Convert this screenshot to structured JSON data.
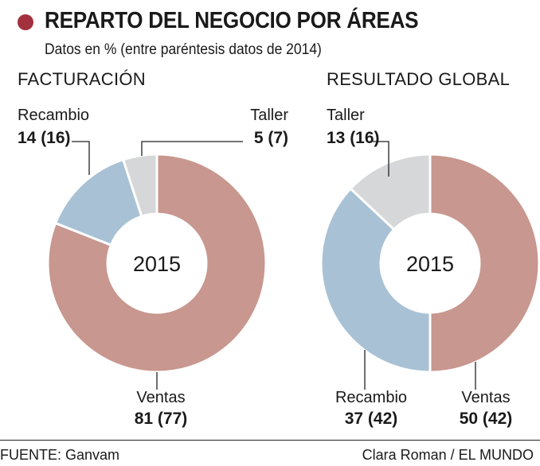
{
  "header": {
    "title": "REPARTO DEL NEGOCIO POR ÁREAS",
    "subtitle": "Datos en % (entre paréntesis datos de 2014)",
    "bullet_color": "#a3313d"
  },
  "footer": {
    "source": "FUENTE: Ganvam",
    "credit": "Clara Roman / EL MUNDO"
  },
  "colors": {
    "Ventas": "#c8978f",
    "Recambio": "#a8c1d5",
    "Taller": "#d6d7d8"
  },
  "chart_data": [
    {
      "type": "pie",
      "donut": true,
      "title": "FACTURACIÓN",
      "center_label": "2015",
      "slices": [
        {
          "name": "Ventas",
          "value": 81,
          "prev": 77,
          "label": "81 (77)"
        },
        {
          "name": "Recambio",
          "value": 14,
          "prev": 16,
          "label": "14 (16)"
        },
        {
          "name": "Taller",
          "value": 5,
          "prev": 7,
          "label": "5 (7)"
        }
      ]
    },
    {
      "type": "pie",
      "donut": true,
      "title": "RESULTADO GLOBAL",
      "center_label": "2015",
      "slices": [
        {
          "name": "Ventas",
          "value": 50,
          "prev": 42,
          "label": "50 (42)"
        },
        {
          "name": "Recambio",
          "value": 37,
          "prev": 42,
          "label": "37 (42)"
        },
        {
          "name": "Taller",
          "value": 13,
          "prev": 16,
          "label": "13 (16)"
        }
      ]
    }
  ]
}
